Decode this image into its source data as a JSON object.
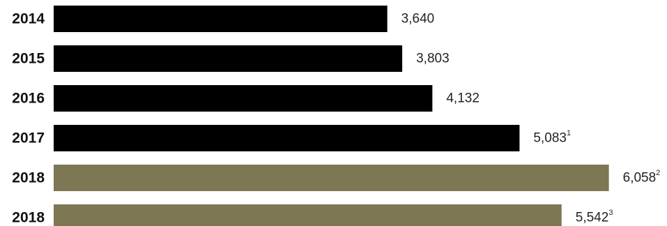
{
  "chart_data": {
    "type": "bar",
    "orientation": "horizontal",
    "title": "",
    "xlabel": "",
    "ylabel": "",
    "grid": false,
    "legend": "none",
    "xlim": [
      0,
      7000
    ],
    "categories": [
      "2014",
      "2015",
      "2016",
      "2017",
      "2018",
      "2018"
    ],
    "values": [
      3640,
      3803,
      4132,
      5083,
      6058,
      5542
    ],
    "value_labels": [
      "3,640",
      "3,803",
      "4,132",
      "5,083",
      "6,058",
      "5,542"
    ],
    "footnote_marks": [
      "",
      "",
      "",
      "1",
      "2",
      "3"
    ],
    "bar_colors": [
      "#000000",
      "#000000",
      "#000000",
      "#000000",
      "#7d7753",
      "#7d7753"
    ]
  }
}
